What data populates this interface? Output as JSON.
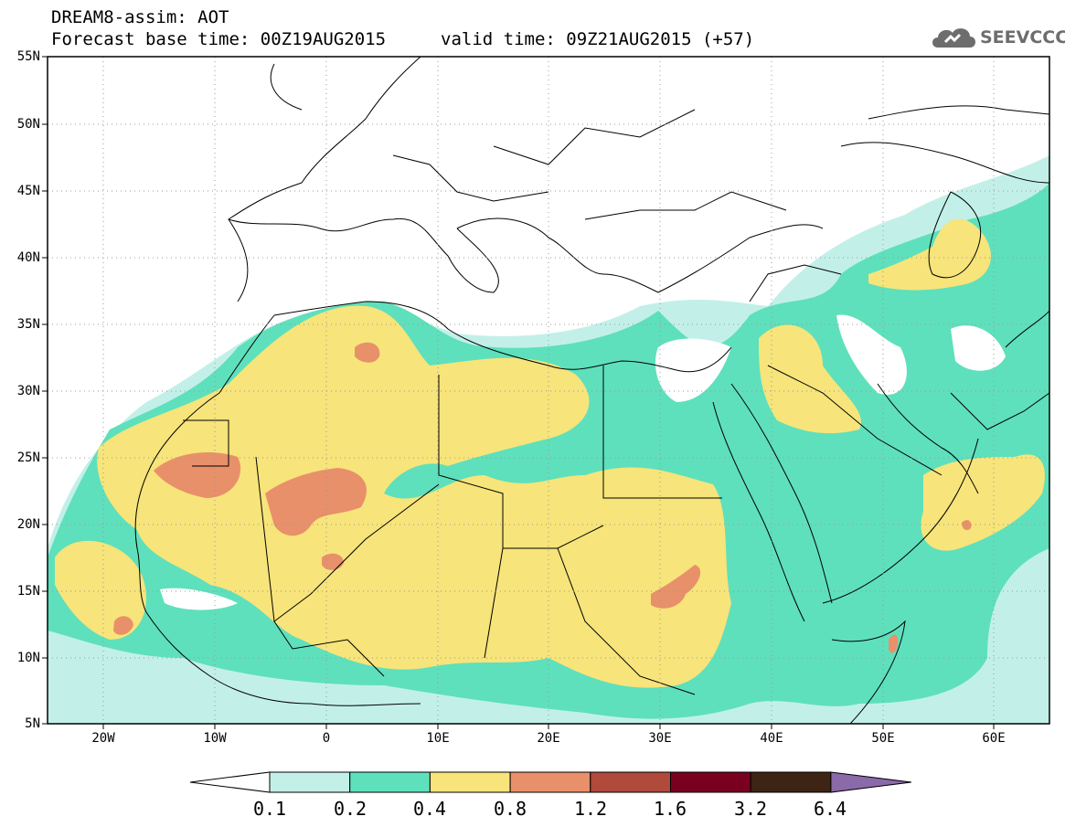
{
  "header": {
    "title_line1": "DREAM8-assim: AOT",
    "title_line2": "Forecast base time: 00Z19AUG2015",
    "valid_time": "valid time: 09Z21AUG2015 (+57)",
    "logo_text": "SEEVCCC",
    "logo_icon": "cloud-icon"
  },
  "map": {
    "lat_labels": [
      "55N",
      "50N",
      "45N",
      "40N",
      "35N",
      "30N",
      "25N",
      "20N",
      "15N",
      "10N",
      "5N"
    ],
    "lon_labels": [
      "20W",
      "10W",
      "0",
      "10E",
      "20E",
      "30E",
      "40E",
      "50E",
      "60E"
    ],
    "lon_range": [
      -25,
      65
    ],
    "lat_range": [
      5,
      55
    ],
    "grid": "dotted"
  },
  "colorbar": {
    "labels": [
      "0.1",
      "0.2",
      "0.4",
      "0.8",
      "1.2",
      "1.6",
      "3.2",
      "6.4"
    ],
    "colors": [
      "#ffffff",
      "#c2f0e8",
      "#5ee0bc",
      "#f7e47a",
      "#e8906a",
      "#b04a3a",
      "#7a0020",
      "#3e2414",
      "#8a6aa8"
    ]
  }
}
